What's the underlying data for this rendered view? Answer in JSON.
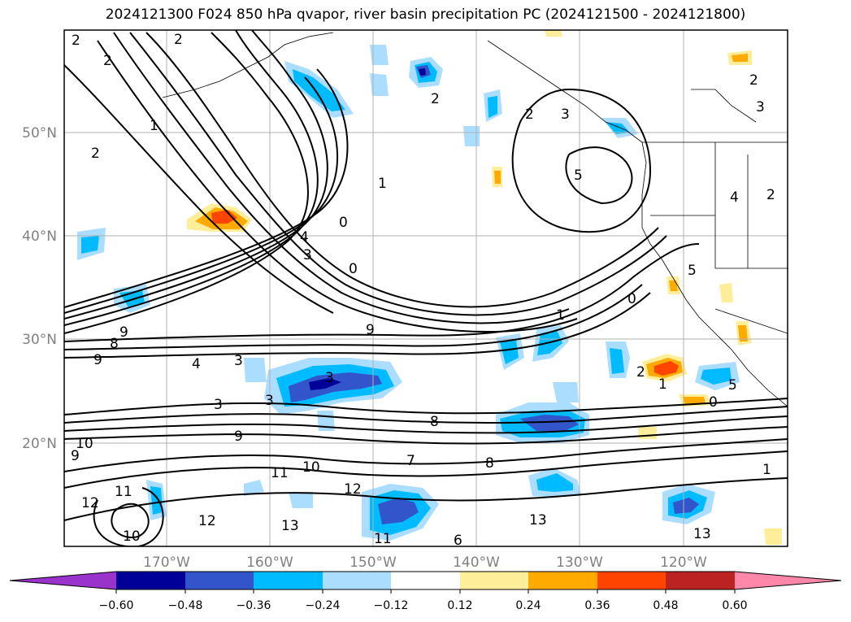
{
  "title": "2024121300 F024 850 hPa qvapor, river basin precipitation PC (2024121500 - 2024121800)",
  "lat_labels": [
    "50°N",
    "40°N",
    "30°N",
    "20°N"
  ],
  "lon_labels": [
    "170°W",
    "160°W",
    "150°W",
    "140°W",
    "130°W",
    "120°W"
  ],
  "colorbar": {
    "colors": [
      "#9933cc",
      "#000099",
      "#3355cc",
      "#00bbff",
      "#aaddff",
      "#ffffff",
      "#ffee99",
      "#ffaa00",
      "#ff4400",
      "#bb2222",
      "#ff88aa"
    ],
    "ticks": [
      "−0.60",
      "−0.48",
      "−0.36",
      "−0.24",
      "−0.12",
      "0.12",
      "0.24",
      "0.36",
      "0.48",
      "0.60"
    ]
  },
  "contour_labels": [
    "2",
    "2",
    "2",
    "2",
    "2",
    "2",
    "2",
    "3",
    "1",
    "1",
    "1",
    "0",
    "0",
    "0",
    "5",
    "4",
    "4",
    "3",
    "9",
    "9",
    "8",
    "9",
    "3",
    "3",
    "4",
    "3",
    "3",
    "8",
    "8",
    "9",
    "10",
    "9",
    "11",
    "10",
    "12",
    "11",
    "10",
    "12",
    "13",
    "12",
    "11",
    "13",
    "13",
    "2",
    "1",
    "0",
    "1",
    "3",
    "5",
    "7",
    "2",
    "5",
    "6"
  ]
}
